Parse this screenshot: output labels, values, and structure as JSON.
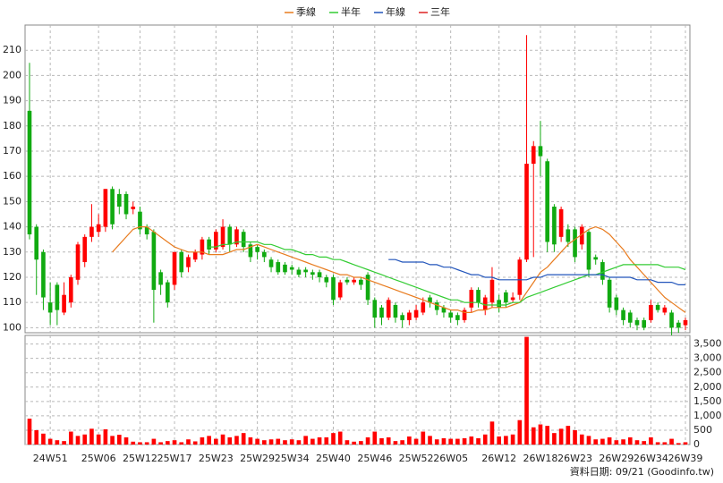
{
  "chart_data": {
    "type": "candlestick",
    "categories": [
      null,
      null,
      null,
      "24W51",
      null,
      null,
      null,
      null,
      null,
      null,
      "25W06",
      null,
      null,
      null,
      null,
      null,
      "25W12",
      null,
      null,
      null,
      null,
      "25W17",
      null,
      null,
      null,
      null,
      null,
      "25W23",
      null,
      null,
      null,
      null,
      null,
      "25W29",
      null,
      null,
      null,
      null,
      "25W34",
      null,
      null,
      null,
      null,
      null,
      "25W40",
      null,
      null,
      null,
      null,
      null,
      "25W46",
      null,
      null,
      null,
      null,
      null,
      "25W52",
      null,
      null,
      null,
      null,
      "26W05",
      null,
      null,
      null,
      null,
      null,
      null,
      "26W12",
      null,
      null,
      null,
      null,
      null,
      "26W18",
      null,
      null,
      null,
      null,
      "26W23",
      null,
      null,
      null,
      null,
      null,
      "26W29",
      null,
      null,
      null,
      null,
      "26W34",
      null,
      null,
      null,
      null,
      "26W39"
    ],
    "open": [
      186,
      140,
      130,
      110,
      117,
      106,
      110,
      119,
      126,
      136,
      138,
      140,
      155,
      153,
      153,
      147,
      146,
      140,
      138,
      122,
      118,
      117,
      130,
      124,
      127,
      129,
      135,
      131,
      132,
      140,
      133,
      138,
      133,
      132,
      130,
      127,
      126,
      125,
      124,
      123,
      123,
      122,
      122,
      120,
      120,
      112,
      119,
      118,
      119,
      121,
      111,
      108,
      104,
      109,
      105,
      103,
      104,
      106,
      112,
      110,
      108,
      106,
      105,
      103,
      108,
      115,
      107,
      110,
      111,
      114,
      111,
      113,
      127,
      165,
      172,
      166,
      148,
      136,
      139,
      139,
      133,
      138,
      128,
      126,
      119,
      112,
      107,
      106,
      103,
      103,
      103,
      109,
      106,
      106,
      102,
      101
    ],
    "high": [
      205,
      141,
      131,
      118,
      118,
      118,
      121,
      134,
      137,
      149,
      145,
      155,
      156,
      155,
      154,
      150,
      148,
      141,
      139,
      123,
      119,
      130,
      131,
      129,
      131,
      136,
      136,
      139,
      143,
      141,
      140,
      139,
      134,
      133,
      131,
      128,
      127,
      126,
      125,
      124,
      124,
      123,
      123,
      121,
      121,
      119,
      120,
      120,
      120,
      122,
      112,
      109,
      112,
      110,
      106,
      107,
      109,
      112,
      113,
      111,
      109,
      107,
      106,
      108,
      116,
      116,
      113,
      124,
      113,
      115,
      114,
      128,
      216,
      174,
      182,
      167,
      149,
      148,
      141,
      140,
      141,
      139,
      129,
      127,
      120,
      113,
      108,
      107,
      104,
      104,
      111,
      110,
      109,
      107,
      103,
      104
    ],
    "low": [
      135,
      113,
      107,
      101,
      101,
      105,
      108,
      117,
      124,
      134,
      136,
      138,
      139,
      145,
      143,
      145,
      137,
      135,
      102,
      113,
      108,
      115,
      120,
      122,
      126,
      127,
      129,
      130,
      131,
      130,
      132,
      130,
      126,
      127,
      126,
      122,
      121,
      121,
      121,
      120,
      120,
      119,
      118,
      116,
      109,
      111,
      117,
      117,
      115,
      109,
      100,
      101,
      103,
      102,
      100,
      101,
      103,
      105,
      108,
      105,
      104,
      102,
      101,
      102,
      106,
      108,
      105,
      108,
      106,
      108,
      110,
      111,
      126,
      128,
      160,
      130,
      130,
      134,
      132,
      126,
      131,
      120,
      125,
      117,
      106,
      105,
      101,
      100,
      99,
      99,
      102,
      106,
      105,
      97,
      98,
      99
    ],
    "close": [
      137,
      127,
      112,
      106,
      107,
      113,
      120,
      133,
      136,
      140,
      141,
      155,
      141,
      148,
      145,
      148,
      139,
      137,
      115,
      117,
      110,
      130,
      122,
      128,
      130,
      135,
      131,
      138,
      140,
      133,
      139,
      132,
      128,
      130,
      128,
      124,
      122,
      122,
      123,
      121,
      122,
      121,
      120,
      118,
      111,
      118,
      118,
      119,
      117,
      111,
      104,
      104,
      111,
      104,
      103,
      106,
      107,
      110,
      110,
      107,
      106,
      104,
      103,
      107,
      115,
      110,
      112,
      119,
      108,
      110,
      112,
      127,
      165,
      172,
      168,
      134,
      133,
      147,
      134,
      128,
      140,
      123,
      127,
      119,
      108,
      107,
      103,
      102,
      101,
      100,
      109,
      107,
      108,
      100,
      100,
      103
    ],
    "volume": [
      900,
      500,
      380,
      200,
      150,
      120,
      450,
      300,
      350,
      550,
      350,
      530,
      300,
      340,
      250,
      100,
      80,
      80,
      200,
      80,
      120,
      150,
      80,
      180,
      110,
      250,
      300,
      200,
      350,
      250,
      300,
      400,
      250,
      200,
      150,
      180,
      200,
      150,
      180,
      150,
      300,
      200,
      250,
      250,
      400,
      450,
      150,
      100,
      120,
      250,
      450,
      220,
      250,
      120,
      150,
      280,
      200,
      450,
      300,
      180,
      220,
      200,
      200,
      220,
      280,
      220,
      350,
      800,
      280,
      300,
      350,
      850,
      3750,
      600,
      700,
      650,
      400,
      550,
      650,
      500,
      350,
      300,
      180,
      200,
      250,
      150,
      180,
      250,
      150,
      120,
      250,
      80,
      80,
      200,
      50,
      80
    ],
    "up_color": "#ff0000",
    "down_color": "#11aa11",
    "volume_color": "#ff0000",
    "ylim": [
      98,
      220
    ],
    "yticks": [
      100,
      110,
      120,
      130,
      140,
      150,
      160,
      170,
      180,
      190,
      200,
      210
    ],
    "volume_ylim": [
      0,
      3800
    ],
    "volume_yticks": [
      0,
      500,
      {
        "value": 1000,
        "label": "1,000"
      },
      {
        "value": 1500,
        "label": "1,500"
      },
      {
        "value": 2000,
        "label": "2,000"
      },
      {
        "value": 2500,
        "label": "2,500"
      },
      {
        "value": 3000,
        "label": "3,000"
      },
      {
        "value": 3500,
        "label": "3,500"
      }
    ],
    "grid": true,
    "series": [
      {
        "name": "季線",
        "color": "#e87b1e",
        "values": [
          null,
          null,
          null,
          null,
          null,
          null,
          null,
          null,
          null,
          null,
          null,
          null,
          130,
          133,
          136,
          139,
          140,
          140,
          138,
          136,
          134,
          132,
          131,
          130,
          130,
          130,
          129,
          129,
          129,
          130,
          131,
          131,
          132,
          133,
          132,
          131,
          130,
          129,
          128,
          127,
          126,
          125,
          124,
          123,
          122,
          121,
          121,
          120,
          120,
          119,
          118,
          117,
          116,
          115,
          114,
          113,
          112,
          111,
          110,
          109,
          108,
          107,
          107,
          106,
          106,
          107,
          107,
          108,
          108,
          108,
          109,
          110,
          114,
          118,
          122,
          124,
          127,
          130,
          133,
          135,
          137,
          139,
          140,
          139,
          137,
          134,
          131,
          127,
          124,
          121,
          118,
          115,
          112,
          110,
          108,
          106
        ]
      },
      {
        "name": "半年",
        "color": "#33cc33",
        "values": [
          null,
          null,
          null,
          null,
          null,
          null,
          null,
          null,
          null,
          null,
          null,
          null,
          null,
          null,
          null,
          null,
          null,
          null,
          null,
          null,
          null,
          null,
          null,
          null,
          null,
          null,
          132,
          132,
          133,
          133,
          134,
          134,
          134,
          134,
          133,
          133,
          132,
          131,
          131,
          130,
          129,
          129,
          128,
          128,
          127,
          127,
          126,
          125,
          124,
          123,
          122,
          121,
          120,
          119,
          118,
          117,
          116,
          115,
          114,
          113,
          112,
          111,
          111,
          110,
          110,
          110,
          109,
          109,
          109,
          109,
          110,
          110,
          112,
          113,
          114,
          115,
          116,
          117,
          118,
          119,
          120,
          121,
          121,
          122,
          123,
          124,
          125,
          125,
          125,
          125,
          125,
          125,
          124,
          124,
          124,
          123
        ]
      },
      {
        "name": "年線",
        "color": "#2255bb",
        "values": [
          null,
          null,
          null,
          null,
          null,
          null,
          null,
          null,
          null,
          null,
          null,
          null,
          null,
          null,
          null,
          null,
          null,
          null,
          null,
          null,
          null,
          null,
          null,
          null,
          null,
          null,
          null,
          null,
          null,
          null,
          null,
          null,
          null,
          null,
          null,
          null,
          null,
          null,
          null,
          null,
          null,
          null,
          null,
          null,
          null,
          null,
          null,
          null,
          null,
          null,
          null,
          null,
          127,
          127,
          126,
          126,
          126,
          126,
          125,
          125,
          124,
          124,
          123,
          122,
          121,
          121,
          120,
          120,
          119,
          119,
          119,
          119,
          119,
          120,
          120,
          121,
          121,
          121,
          121,
          121,
          121,
          121,
          121,
          121,
          120,
          120,
          120,
          120,
          119,
          119,
          119,
          118,
          118,
          118,
          117,
          117
        ]
      },
      {
        "name": "三年",
        "color": "#dd2222",
        "values": [
          null,
          null,
          null,
          null,
          null,
          null,
          null,
          null,
          null,
          null,
          null,
          null,
          null,
          null,
          null,
          null,
          null,
          null,
          null,
          null,
          null,
          null,
          null,
          null,
          null,
          null,
          null,
          null,
          null,
          null,
          null,
          null,
          null,
          null,
          null,
          null,
          null,
          null,
          null,
          null,
          null,
          null,
          null,
          null,
          null,
          null,
          null,
          null,
          null,
          null,
          null,
          null,
          null,
          null,
          null,
          null,
          null,
          null,
          null,
          null,
          null,
          null,
          null,
          null,
          null,
          null,
          null,
          null,
          null,
          null,
          null,
          null,
          null,
          null,
          null,
          null,
          null,
          null,
          null,
          null,
          null,
          null,
          null,
          null,
          null,
          null,
          null,
          null,
          null,
          null,
          null,
          null,
          null,
          null,
          null,
          null
        ]
      }
    ],
    "footer": "資料日期: 09/21  (Goodinfo.tw)"
  }
}
